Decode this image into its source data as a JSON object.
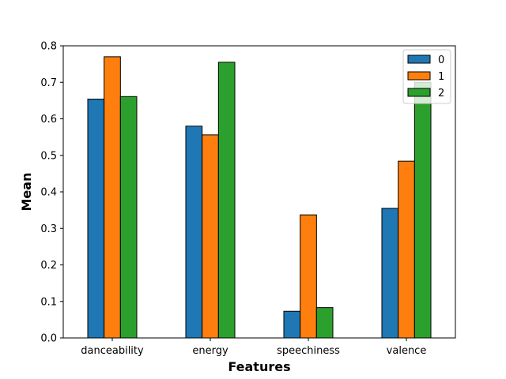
{
  "chart_data": {
    "type": "bar",
    "title": "",
    "xlabel": "Features",
    "ylabel": "Mean",
    "categories": [
      "danceability",
      "energy",
      "speechiness",
      "valence"
    ],
    "series": [
      {
        "name": "0",
        "color": "#1f77b4",
        "values": [
          0.654,
          0.58,
          0.073,
          0.355
        ]
      },
      {
        "name": "1",
        "color": "#ff7f0e",
        "values": [
          0.77,
          0.556,
          0.337,
          0.484
        ]
      },
      {
        "name": "2",
        "color": "#2ca02c",
        "values": [
          0.661,
          0.755,
          0.083,
          0.7
        ]
      }
    ],
    "ylim": [
      0,
      0.8
    ],
    "yticks": [
      "0.0",
      "0.1",
      "0.2",
      "0.3",
      "0.4",
      "0.5",
      "0.6",
      "0.7",
      "0.8"
    ],
    "grid": false,
    "legend": "top-right"
  }
}
